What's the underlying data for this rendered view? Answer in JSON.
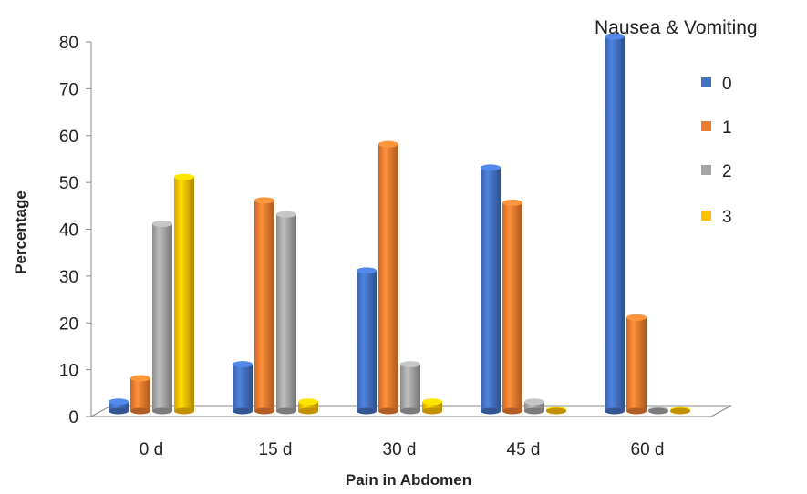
{
  "chart_data": {
    "type": "bar",
    "title": "",
    "xlabel": "Pain in Abdomen",
    "ylabel": "Percentage",
    "legend_title": "Nausea & Vomiting",
    "legend_position": "top-right",
    "categories": [
      "0 d",
      "15 d",
      "30 d",
      "45 d",
      "60 d"
    ],
    "ylim": [
      0,
      80
    ],
    "yticks": [
      0,
      10,
      20,
      30,
      40,
      50,
      60,
      70,
      80
    ],
    "grid": false,
    "style": "3d-column",
    "series": [
      {
        "name": "0",
        "color": "#4472C4",
        "values": [
          2,
          10,
          30,
          52,
          80
        ]
      },
      {
        "name": "1",
        "color": "#ED7D31",
        "values": [
          7,
          45,
          57,
          44.5,
          20
        ]
      },
      {
        "name": "2",
        "color": "#A5A5A5",
        "values": [
          40,
          42,
          10,
          2,
          0
        ]
      },
      {
        "name": "3",
        "color": "#FFC000",
        "values": [
          50,
          2,
          2,
          0,
          0
        ]
      }
    ]
  }
}
